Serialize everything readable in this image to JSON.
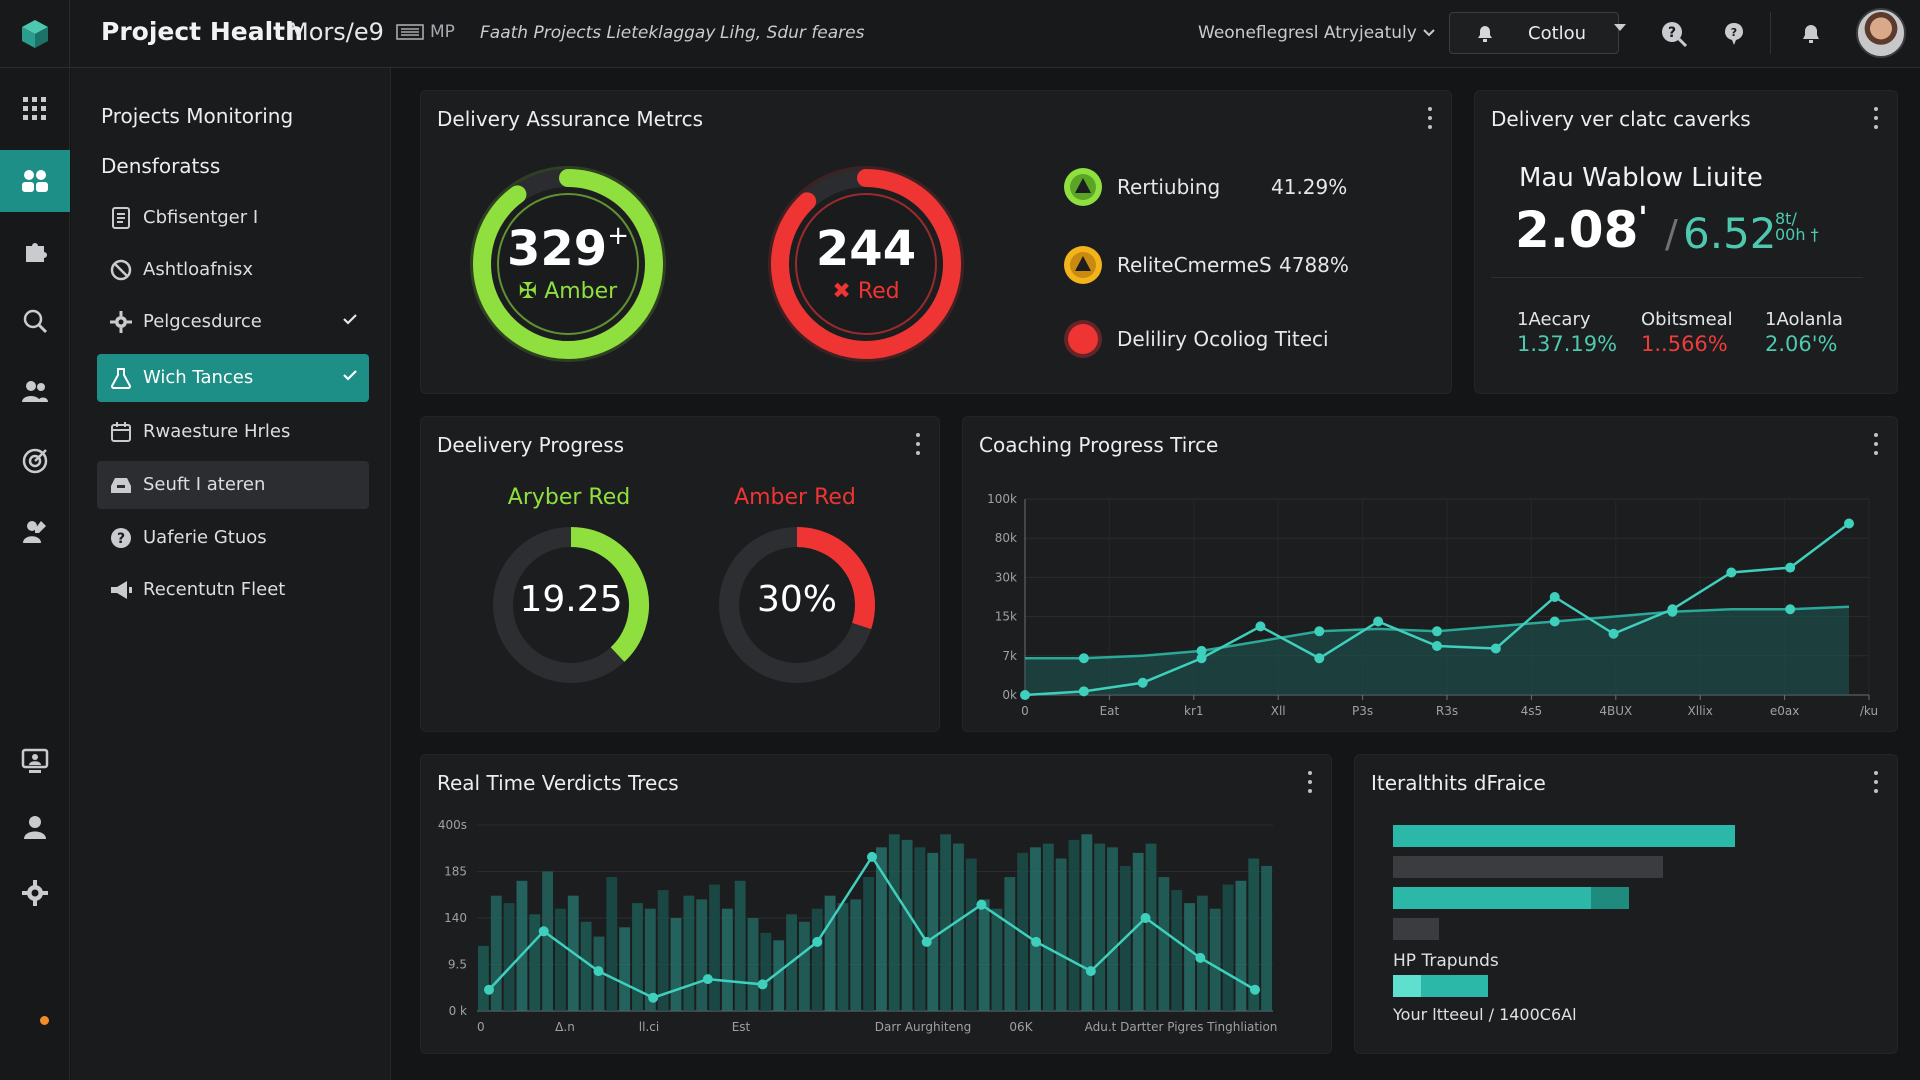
{
  "header": {
    "title": "Project Health",
    "subtitle": "Mors/e9",
    "mp_label": "MP",
    "nav_links": [
      "Faath Projects Lieteklaggay",
      "Lihg, Sdur feares"
    ],
    "workspace_select": "Weoneflegresl Atryjeatuly",
    "action_button": "Cotlou"
  },
  "rail": {
    "icons": [
      "grid-icon",
      "team-icon",
      "puzzle-icon",
      "search-icon",
      "users-icon",
      "target-icon",
      "person-edit-icon",
      "monitor-user-icon",
      "user-icon",
      "settings-icon"
    ]
  },
  "sidebar": {
    "heading": "Projects Monitoring",
    "subheading": "Densforatss",
    "items": [
      {
        "label": "Cbfisentger I",
        "icon": "document-icon"
      },
      {
        "label": "Ashtloafnisx",
        "icon": "circle-slash-icon"
      },
      {
        "label": "Pelgcesdurce",
        "icon": "gear-icon",
        "check": true
      },
      {
        "label": "Wich Tances",
        "icon": "flask-icon",
        "active": true,
        "check": true
      },
      {
        "label": "Rwaesture Hrles",
        "icon": "calendar-icon"
      },
      {
        "label": "Seuft I ateren",
        "icon": "inbox-icon",
        "hover": true
      },
      {
        "label": "Uaferie Gtuos",
        "icon": "help-icon"
      },
      {
        "label": "Recentutn Fleet",
        "icon": "megaphone-icon"
      }
    ]
  },
  "assurance": {
    "title": "Delivery Assurance Metrcs",
    "green_ring": {
      "value": "329",
      "suffix": "+",
      "label": "Amber",
      "prefix": "✠",
      "fraction": 0.9,
      "color": "#8fe03e"
    },
    "red_ring": {
      "value": "244",
      "label": "Red",
      "prefix": "✖",
      "fraction": 0.88,
      "color": "#ef3434"
    },
    "legend": [
      {
        "label": "Rertiubing",
        "value": "41.29%",
        "color": "#8fe03e",
        "symbol": "triangle"
      },
      {
        "label": "ReliteCmermeS",
        "value": "4788%",
        "color": "#f2b31b",
        "symbol": "triangle"
      },
      {
        "label": "Deliliry Ocoliog Titeci",
        "value": "",
        "color": "#ef3434",
        "symbol": "circle"
      }
    ]
  },
  "caveats": {
    "title": "Delivery ver clatc caverks",
    "heading": "Mau Wablow Liuite",
    "big_value": "2.08",
    "big_mark": "'",
    "second_value": "6.52",
    "second_unit_top": "8t/",
    "second_unit_bottom": "00h †",
    "sub_metrics": [
      {
        "label": "1Aecary",
        "value": "1.37.19%",
        "color": "#4ec9b0"
      },
      {
        "label": "Obitsmeal",
        "value": "1..566%",
        "color": "#ef3b3b"
      },
      {
        "label": "1Aolanla",
        "value": "2.06'%",
        "color": "#4ec9b0"
      }
    ]
  },
  "progress": {
    "title": "Deelivery Progress",
    "amber": {
      "label": "Aryber Red",
      "value": "19.25",
      "fraction": 0.38,
      "color": "#8fe03e"
    },
    "red": {
      "label": "Amber Red",
      "value": "30%",
      "fraction": 0.3,
      "color": "#ef3434"
    }
  },
  "coaching": {
    "title": "Coaching Progress Tirce",
    "chart_data": {
      "type": "line",
      "y_ticks": [
        "100k",
        "80k",
        "30k",
        "15k",
        "7k",
        "0k"
      ],
      "x_ticks": [
        "0",
        "Eat",
        "kr1",
        "Xll",
        "P3s",
        "R3s",
        "4s5",
        "4BUX",
        "Xllix",
        "e0ax",
        "/ku"
      ],
      "series": [
        {
          "name": "",
          "values": [
            15,
            15,
            16,
            18,
            22,
            26,
            27,
            26,
            28,
            30,
            32,
            34,
            35,
            35,
            36
          ],
          "fill": true
        },
        {
          "name": "",
          "values": [
            0,
            1.5,
            5,
            15,
            28,
            15,
            30,
            20,
            19,
            40,
            25,
            35,
            50,
            52,
            70
          ]
        }
      ]
    }
  },
  "verdicts": {
    "title": "Real Time Verdicts Trecs",
    "chart_data": {
      "type": "bar",
      "y_ticks": [
        "400s",
        "185",
        "140",
        "9.5",
        "0 k"
      ],
      "x_ticks": [
        "0",
        "Δ.n",
        "ll.ci",
        "Est",
        "Darr Aurghiteng",
        "06K",
        "Adu.t Dartter Pigres Tinghliation"
      ],
      "values": [
        35,
        62,
        58,
        70,
        52,
        75,
        55,
        62,
        48,
        40,
        72,
        45,
        58,
        55,
        65,
        50,
        62,
        60,
        68,
        55,
        70,
        50,
        42,
        38,
        52,
        48,
        55,
        62,
        58,
        60,
        72,
        88,
        95,
        92,
        88,
        85,
        95,
        90,
        82,
        60,
        55,
        72,
        85,
        88,
        90,
        82,
        92,
        95,
        90,
        88,
        78,
        85,
        90,
        72,
        65,
        58,
        62,
        55,
        68,
        70,
        82,
        78
      ],
      "line": [
        8,
        30,
        15,
        5,
        12,
        10,
        26,
        58,
        26,
        40,
        26,
        15,
        35,
        20,
        8
      ]
    }
  },
  "health": {
    "title": "Iteralthits dFraice",
    "bars": [
      {
        "fraction": 0.9,
        "color": "#2bb8a8"
      },
      {
        "fraction": 0.71,
        "color": "#3a3c3f"
      },
      {
        "fraction": 0.52,
        "color": "#2bb8a8",
        "tail": 0.1
      },
      {
        "fraction": 0.12,
        "color": "#3a3c3f"
      }
    ],
    "label_1": "HP  Trapunds",
    "small_bar": {
      "fraction": 0.25,
      "color": "#2bb8a8"
    },
    "label_2": "Your ltteeul / 1400C6Al"
  }
}
